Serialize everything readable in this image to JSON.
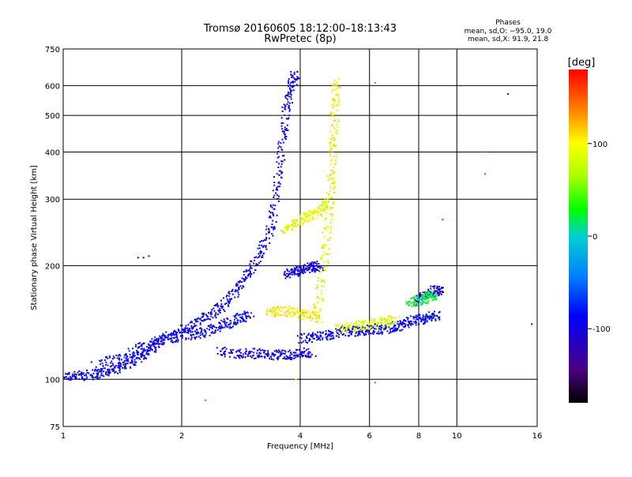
{
  "chart_data": {
    "type": "scatter",
    "title": "Tromsø 20160605 18:12:00–18:13:43",
    "subtitle": "RwPretec (8p)",
    "xlabel": "Frequency [MHz]",
    "ylabel": "Stationary phase Virtual Height [km]",
    "x_scale": "log",
    "y_scale": "log",
    "xlim": [
      1,
      16
    ],
    "ylim": [
      75,
      750
    ],
    "x_ticks": [
      1,
      2,
      4,
      6,
      8,
      10,
      16
    ],
    "y_ticks": [
      75,
      100,
      200,
      300,
      400,
      500,
      600,
      750
    ],
    "grid": true,
    "phase_info": {
      "title": "Phases",
      "line_o": "mean, sd,O: −95.0, 19.0",
      "line_x": "mean, sd,X:  91.9, 21.8"
    },
    "colorbar": {
      "label": "[deg]",
      "range": [
        -180,
        180
      ],
      "ticks": [
        -100,
        0,
        100
      ]
    },
    "traces": [
      {
        "phase": -95,
        "points": [
          [
            1.0,
            102
          ],
          [
            1.1,
            102
          ],
          [
            1.2,
            103
          ],
          [
            1.3,
            105
          ],
          [
            1.4,
            108
          ],
          [
            1.5,
            112
          ],
          [
            1.6,
            117
          ],
          [
            1.7,
            122
          ],
          [
            1.8,
            128
          ],
          [
            2.0,
            134
          ],
          [
            2.2,
            142
          ],
          [
            2.4,
            150
          ],
          [
            2.6,
            160
          ],
          [
            2.8,
            175
          ],
          [
            3.0,
            195
          ],
          [
            3.2,
            220
          ],
          [
            3.4,
            260
          ],
          [
            3.5,
            330
          ],
          [
            3.6,
            420
          ],
          [
            3.7,
            520
          ],
          [
            3.8,
            600
          ],
          [
            3.9,
            650
          ]
        ]
      },
      {
        "phase": -90,
        "points": [
          [
            1.2,
            108
          ],
          [
            1.4,
            114
          ],
          [
            1.6,
            122
          ],
          [
            1.8,
            128
          ],
          [
            2.0,
            130
          ],
          [
            2.2,
            132
          ],
          [
            2.4,
            136
          ],
          [
            2.6,
            140
          ],
          [
            2.8,
            145
          ],
          [
            3.0,
            148
          ]
        ]
      },
      {
        "phase": -100,
        "points": [
          [
            2.5,
            118
          ],
          [
            2.8,
            117
          ],
          [
            3.1,
            117
          ],
          [
            3.4,
            116
          ],
          [
            3.7,
            116
          ],
          [
            4.0,
            117
          ],
          [
            4.3,
            118
          ]
        ]
      },
      {
        "phase": -95,
        "points": [
          [
            4.0,
            128
          ],
          [
            4.4,
            130
          ],
          [
            4.8,
            132
          ],
          [
            5.2,
            134
          ],
          [
            5.6,
            134
          ],
          [
            6.0,
            135
          ],
          [
            6.5,
            136
          ],
          [
            7.0,
            138
          ],
          [
            7.5,
            141
          ],
          [
            8.0,
            144
          ],
          [
            8.5,
            146
          ],
          [
            9.0,
            148
          ]
        ]
      },
      {
        "phase": -100,
        "points": [
          [
            3.7,
            190
          ],
          [
            3.9,
            193
          ],
          [
            4.1,
            196
          ],
          [
            4.3,
            198
          ],
          [
            4.5,
            200
          ]
        ]
      },
      {
        "phase": -110,
        "points": [
          [
            8.0,
            160
          ],
          [
            8.4,
            168
          ],
          [
            8.8,
            172
          ],
          [
            9.2,
            170
          ]
        ]
      },
      {
        "phase": 95,
        "points": [
          [
            4.4,
            150
          ],
          [
            4.6,
            200
          ],
          [
            4.7,
            260
          ],
          [
            4.8,
            330
          ],
          [
            4.85,
            420
          ],
          [
            4.9,
            520
          ],
          [
            4.95,
            620
          ]
        ]
      },
      {
        "phase": 90,
        "points": [
          [
            3.6,
            250
          ],
          [
            3.9,
            260
          ],
          [
            4.2,
            270
          ],
          [
            4.5,
            280
          ],
          [
            4.7,
            300
          ]
        ]
      },
      {
        "phase": 100,
        "points": [
          [
            3.3,
            150
          ],
          [
            3.6,
            152
          ],
          [
            3.9,
            150
          ],
          [
            4.2,
            148
          ],
          [
            4.5,
            145
          ]
        ]
      },
      {
        "phase": 85,
        "points": [
          [
            5.0,
            135
          ],
          [
            5.5,
            138
          ],
          [
            6.0,
            140
          ],
          [
            6.5,
            142
          ],
          [
            7.0,
            144
          ]
        ]
      },
      {
        "phase": 20,
        "points": [
          [
            7.6,
            160
          ],
          [
            8.0,
            162
          ],
          [
            8.4,
            165
          ],
          [
            8.8,
            167
          ]
        ]
      }
    ],
    "isolated_points": [
      [
        1.55,
        210,
        -95
      ],
      [
        1.65,
        212,
        -100
      ],
      [
        1.6,
        210,
        -95
      ],
      [
        11.8,
        400,
        -20
      ],
      [
        11.8,
        350,
        -30
      ],
      [
        13.5,
        570,
        -100
      ],
      [
        15.5,
        140,
        -90
      ],
      [
        9.2,
        265,
        160
      ],
      [
        6.2,
        610,
        150
      ],
      [
        6.2,
        98,
        -30
      ],
      [
        4.0,
        100,
        -95
      ],
      [
        3.9,
        100,
        100
      ],
      [
        2.3,
        88,
        150
      ],
      [
        6.2,
        140,
        -95
      ]
    ]
  }
}
